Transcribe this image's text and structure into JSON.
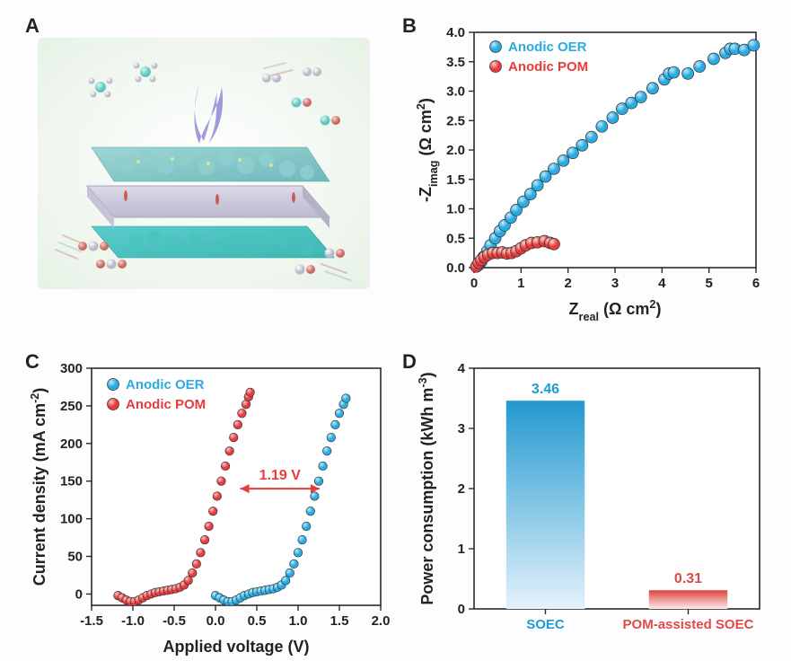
{
  "labels": {
    "A": "A",
    "B": "B",
    "C": "C",
    "D": "D"
  },
  "panelB": {
    "type": "scatter",
    "bg": "#fdfdff",
    "plot_bg": "#ffffff",
    "border_color": "#2b2b2b",
    "tick_fontsize": 15,
    "label_fontsize": 18,
    "legend_fontsize": 15,
    "xlabel": "Z_real (Ω cm^2)",
    "ylabel": "-Z_imag (Ω cm^2)",
    "xlim": [
      0,
      6
    ],
    "xtick_step": 1,
    "ylim": [
      0,
      4
    ],
    "ytick_step": 0.5,
    "marker_radius": 6.5,
    "marker_stroke": "#2f2f2f",
    "series": [
      {
        "name": "Anodic OER",
        "color": "#29abe2",
        "shine_color": "#bfe8fb",
        "points": [
          [
            0.05,
            0.02
          ],
          [
            0.1,
            0.05
          ],
          [
            0.15,
            0.1
          ],
          [
            0.2,
            0.18
          ],
          [
            0.28,
            0.28
          ],
          [
            0.35,
            0.38
          ],
          [
            0.45,
            0.5
          ],
          [
            0.55,
            0.62
          ],
          [
            0.65,
            0.72
          ],
          [
            0.78,
            0.85
          ],
          [
            0.9,
            0.98
          ],
          [
            1.05,
            1.12
          ],
          [
            1.2,
            1.25
          ],
          [
            1.35,
            1.4
          ],
          [
            1.52,
            1.55
          ],
          [
            1.7,
            1.68
          ],
          [
            1.9,
            1.82
          ],
          [
            2.1,
            1.95
          ],
          [
            2.3,
            2.08
          ],
          [
            2.5,
            2.22
          ],
          [
            2.72,
            2.4
          ],
          [
            2.95,
            2.55
          ],
          [
            3.15,
            2.7
          ],
          [
            3.35,
            2.8
          ],
          [
            3.55,
            2.9
          ],
          [
            3.8,
            3.05
          ],
          [
            4.05,
            3.2
          ],
          [
            4.15,
            3.3
          ],
          [
            4.25,
            3.32
          ],
          [
            4.55,
            3.3
          ],
          [
            4.8,
            3.42
          ],
          [
            5.1,
            3.55
          ],
          [
            5.35,
            3.65
          ],
          [
            5.45,
            3.72
          ],
          [
            5.55,
            3.72
          ],
          [
            5.75,
            3.7
          ],
          [
            5.95,
            3.78
          ]
        ]
      },
      {
        "name": "Anodic POM",
        "color": "#e73c3c",
        "shine_color": "#fcd6d6",
        "points": [
          [
            0.05,
            0.02
          ],
          [
            0.1,
            0.08
          ],
          [
            0.15,
            0.13
          ],
          [
            0.22,
            0.18
          ],
          [
            0.3,
            0.22
          ],
          [
            0.4,
            0.25
          ],
          [
            0.5,
            0.25
          ],
          [
            0.6,
            0.26
          ],
          [
            0.7,
            0.24
          ],
          [
            0.8,
            0.25
          ],
          [
            0.9,
            0.28
          ],
          [
            1.0,
            0.33
          ],
          [
            1.1,
            0.38
          ],
          [
            1.22,
            0.42
          ],
          [
            1.35,
            0.43
          ],
          [
            1.5,
            0.45
          ],
          [
            1.62,
            0.42
          ],
          [
            1.7,
            0.4
          ]
        ]
      }
    ]
  },
  "panelC": {
    "type": "scatter-line",
    "bg": "#fdfdff",
    "plot_bg": "#ffffff",
    "border_color": "#2b2b2b",
    "tick_fontsize": 15,
    "label_fontsize": 18,
    "legend_fontsize": 15,
    "xlabel": "Applied voltage (V)",
    "ylabel": "Current density (mA cm^-2)",
    "xlim": [
      -1.5,
      2.0
    ],
    "xtick_step": 0.5,
    "ylim": [
      -15,
      300
    ],
    "ytick_step": 50,
    "yticks": [
      0,
      50,
      100,
      150,
      200,
      250,
      300
    ],
    "marker_radius": 4.8,
    "marker_stroke": "#2f2f2f",
    "annotation": {
      "text": "1.19 V",
      "color": "#e73c3c",
      "y": 140,
      "x1_v": 0.3,
      "x2_v": 1.26
    },
    "series": [
      {
        "name": "Anodic OER",
        "color": "#29abe2",
        "shine_color": "#bfe8fb",
        "points": [
          [
            0.0,
            -2
          ],
          [
            0.05,
            -5
          ],
          [
            0.1,
            -8
          ],
          [
            0.15,
            -10
          ],
          [
            0.2,
            -10
          ],
          [
            0.25,
            -8
          ],
          [
            0.3,
            -5
          ],
          [
            0.35,
            -2
          ],
          [
            0.4,
            0
          ],
          [
            0.45,
            2
          ],
          [
            0.5,
            3
          ],
          [
            0.55,
            4
          ],
          [
            0.6,
            5
          ],
          [
            0.65,
            6
          ],
          [
            0.7,
            7
          ],
          [
            0.75,
            9
          ],
          [
            0.8,
            12
          ],
          [
            0.85,
            18
          ],
          [
            0.9,
            28
          ],
          [
            0.95,
            40
          ],
          [
            1.0,
            55
          ],
          [
            1.05,
            72
          ],
          [
            1.1,
            90
          ],
          [
            1.15,
            110
          ],
          [
            1.2,
            130
          ],
          [
            1.25,
            150
          ],
          [
            1.3,
            170
          ],
          [
            1.35,
            190
          ],
          [
            1.4,
            208
          ],
          [
            1.45,
            225
          ],
          [
            1.5,
            240
          ],
          [
            1.55,
            252
          ],
          [
            1.58,
            260
          ]
        ]
      },
      {
        "name": "Anodic POM",
        "color": "#e73c3c",
        "shine_color": "#f9c9c9",
        "points": [
          [
            -1.18,
            -2
          ],
          [
            -1.13,
            -5
          ],
          [
            -1.08,
            -8
          ],
          [
            -1.03,
            -10
          ],
          [
            -0.98,
            -10
          ],
          [
            -0.93,
            -8
          ],
          [
            -0.88,
            -5
          ],
          [
            -0.83,
            -2
          ],
          [
            -0.78,
            0
          ],
          [
            -0.73,
            2
          ],
          [
            -0.68,
            3
          ],
          [
            -0.63,
            4
          ],
          [
            -0.58,
            5
          ],
          [
            -0.53,
            6
          ],
          [
            -0.48,
            7
          ],
          [
            -0.43,
            9
          ],
          [
            -0.38,
            12
          ],
          [
            -0.33,
            18
          ],
          [
            -0.28,
            28
          ],
          [
            -0.23,
            40
          ],
          [
            -0.18,
            55
          ],
          [
            -0.13,
            72
          ],
          [
            -0.08,
            90
          ],
          [
            -0.03,
            110
          ],
          [
            0.02,
            130
          ],
          [
            0.07,
            150
          ],
          [
            0.12,
            170
          ],
          [
            0.17,
            190
          ],
          [
            0.22,
            208
          ],
          [
            0.27,
            225
          ],
          [
            0.32,
            240
          ],
          [
            0.37,
            252
          ],
          [
            0.4,
            262
          ],
          [
            0.42,
            268
          ]
        ]
      }
    ]
  },
  "panelD": {
    "type": "bar",
    "bg": "#fdfdff",
    "border_color": "#2b2b2b",
    "tick_fontsize": 15,
    "label_fontsize": 18,
    "ylabel": "Power consumption (kWh m^-3)",
    "ylim": [
      0,
      4
    ],
    "ytick_step": 1,
    "bar_width": 0.55,
    "bars": [
      {
        "label": "SOEC",
        "value": 3.46,
        "value_text": "3.46",
        "color_stop": "#2399cf",
        "color_light": "#e4f2fb",
        "text_color": "#1c9cd5"
      },
      {
        "label": "POM-assisted SOEC",
        "value": 0.31,
        "value_text": "0.31",
        "color_stop": "#de4440",
        "color_light": "#fceceb",
        "text_color": "#e04a46"
      }
    ]
  }
}
